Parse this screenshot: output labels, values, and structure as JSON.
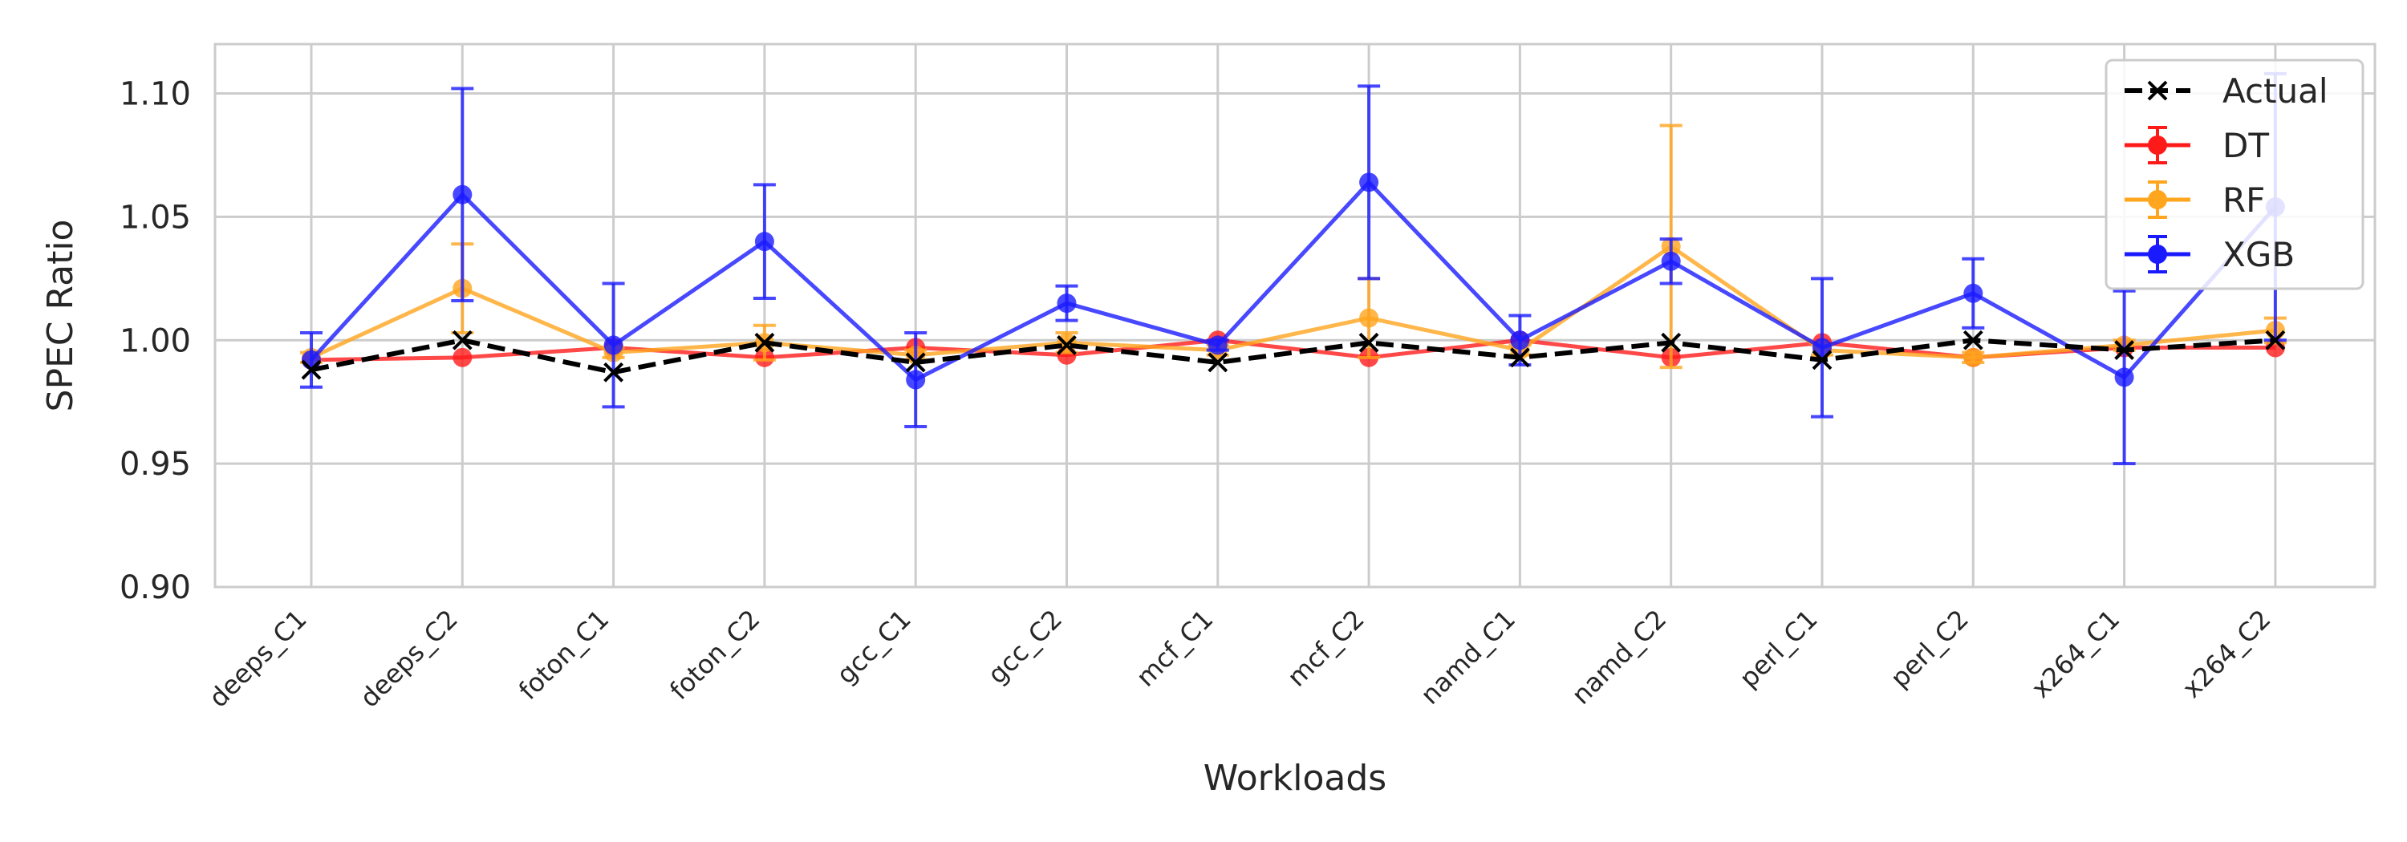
{
  "chart_data": {
    "type": "line",
    "xlabel": "Workloads",
    "ylabel": "SPEC Ratio",
    "ylim": [
      0.9,
      1.12
    ],
    "yticks": [
      "0.90",
      "0.95",
      "1.00",
      "1.05",
      "1.10"
    ],
    "categories": [
      "deeps_C1",
      "deeps_C2",
      "foton_C1",
      "foton_C2",
      "gcc_C1",
      "gcc_C2",
      "mcf_C1",
      "mcf_C2",
      "namd_C1",
      "namd_C2",
      "perl_C1",
      "perl_C2",
      "x264_C1",
      "x264_C2"
    ],
    "grid": true,
    "legend_position": "top-right",
    "series": [
      {
        "name": "Actual",
        "color": "#000000",
        "style": "dashed",
        "marker": "x",
        "values": [
          0.988,
          1.0,
          0.987,
          0.999,
          0.991,
          0.998,
          0.991,
          0.999,
          0.993,
          0.999,
          0.992,
          1.0,
          0.996,
          1.0
        ]
      },
      {
        "name": "DT",
        "color": "#ff1a1a",
        "style": "solid",
        "marker": "o",
        "values": [
          0.992,
          0.993,
          0.997,
          0.993,
          0.997,
          0.994,
          1.0,
          0.993,
          1.0,
          0.993,
          0.999,
          0.993,
          0.997,
          0.997
        ],
        "errors": [
          0,
          0,
          0,
          0,
          0,
          0,
          0,
          0,
          0,
          0,
          0,
          0,
          0,
          0
        ]
      },
      {
        "name": "RF",
        "color": "#ffa51e",
        "style": "solid",
        "marker": "o",
        "values": [
          0.993,
          1.021,
          0.995,
          0.999,
          0.994,
          0.999,
          0.996,
          1.009,
          0.996,
          1.038,
          0.996,
          0.993,
          0.998,
          1.004
        ],
        "errors": [
          0.002,
          0.018,
          0.002,
          0.007,
          0.002,
          0.004,
          0.002,
          0.016,
          0.002,
          0.049,
          0.002,
          0.002,
          0.002,
          0.005
        ]
      },
      {
        "name": "XGB",
        "color": "#1a1aff",
        "style": "solid",
        "marker": "o",
        "values": [
          0.992,
          1.059,
          0.998,
          1.04,
          0.984,
          1.015,
          0.998,
          1.064,
          1.0,
          1.032,
          0.997,
          1.019,
          0.985,
          1.054
        ],
        "errors": [
          0.011,
          0.043,
          0.025,
          0.023,
          0.019,
          0.007,
          0.002,
          0.039,
          0.01,
          0.009,
          0.028,
          0.014,
          0.035,
          0.054
        ]
      }
    ]
  }
}
